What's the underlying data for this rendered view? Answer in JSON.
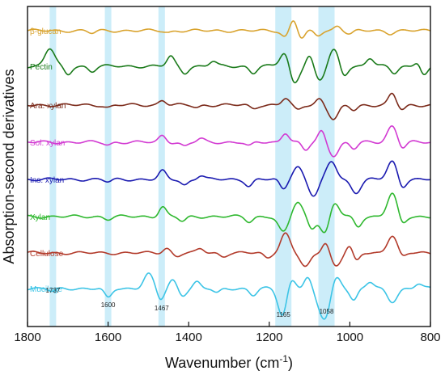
{
  "chart_data": {
    "type": "line",
    "title": "",
    "xlabel": "Wavenumber (cm",
    "xlabel_sup": "-1",
    "xlabel_end": ")",
    "ylabel": "Absorption-second derivatives",
    "xlim": [
      1800,
      800
    ],
    "x_reversed": true,
    "y_ticks_shown": false,
    "x_ticks": [
      1800,
      1600,
      1400,
      1200,
      1000,
      800
    ],
    "x_tick_labels": [
      "1800",
      "1600",
      "1400",
      "1200",
      "1000",
      "800"
    ],
    "highlight_color": "#bfe9f7",
    "highlight_bands": [
      {
        "center": 1737,
        "label": "1737"
      },
      {
        "center": 1600,
        "label": "1600"
      },
      {
        "center": 1467,
        "label": "1467"
      },
      {
        "center": 1165,
        "label": "1165"
      },
      {
        "center": 1058,
        "label": "1058"
      }
    ],
    "series": [
      {
        "name": "β-glucan",
        "color": "#d9a32e",
        "peaks": [
          [
            1160,
            -8
          ],
          [
            1140,
            14
          ],
          [
            1120,
            -10
          ],
          [
            1080,
            -6
          ],
          [
            1030,
            6
          ],
          [
            1000,
            -4
          ],
          [
            900,
            -3
          ],
          [
            1640,
            -3
          ],
          [
            1450,
            -2
          ]
        ]
      },
      {
        "name": "Pectin",
        "color": "#1a7a1a",
        "peaks": [
          [
            1745,
            22
          ],
          [
            1700,
            -10
          ],
          [
            1640,
            -6
          ],
          [
            1445,
            12
          ],
          [
            1410,
            -8
          ],
          [
            1340,
            6
          ],
          [
            1240,
            -8
          ],
          [
            1160,
            20
          ],
          [
            1140,
            -24
          ],
          [
            1100,
            14
          ],
          [
            1075,
            -18
          ],
          [
            1040,
            20
          ],
          [
            1015,
            -12
          ],
          [
            950,
            10
          ],
          [
            890,
            -8
          ],
          [
            830,
            14
          ],
          [
            820,
            -16
          ]
        ]
      },
      {
        "name": "Ara. xylan",
        "color": "#7b2a1a",
        "peaks": [
          [
            1600,
            -3
          ],
          [
            1465,
            6
          ],
          [
            1380,
            -3
          ],
          [
            1240,
            -4
          ],
          [
            1160,
            8
          ],
          [
            1130,
            -6
          ],
          [
            1075,
            8
          ],
          [
            1040,
            -18
          ],
          [
            990,
            -6
          ],
          [
            895,
            14
          ],
          [
            870,
            -6
          ]
        ]
      },
      {
        "name": "Sol. xylan",
        "color": "#d23ad2",
        "peaks": [
          [
            1600,
            -3
          ],
          [
            1465,
            8
          ],
          [
            1410,
            -5
          ],
          [
            1370,
            4
          ],
          [
            1250,
            -5
          ],
          [
            1160,
            12
          ],
          [
            1110,
            -10
          ],
          [
            1070,
            14
          ],
          [
            1040,
            -16
          ],
          [
            990,
            -8
          ],
          [
            895,
            20
          ],
          [
            870,
            -8
          ]
        ]
      },
      {
        "name": "Ins. xylan",
        "color": "#1a1ab0",
        "peaks": [
          [
            1600,
            -3
          ],
          [
            1465,
            10
          ],
          [
            1410,
            -7
          ],
          [
            1370,
            5
          ],
          [
            1250,
            -8
          ],
          [
            1165,
            -12
          ],
          [
            1130,
            16
          ],
          [
            1090,
            -20
          ],
          [
            1045,
            22
          ],
          [
            985,
            -16
          ],
          [
            895,
            22
          ],
          [
            870,
            -10
          ]
        ]
      },
      {
        "name": "Xylan",
        "color": "#2fb82f",
        "peaks": [
          [
            1600,
            -3
          ],
          [
            1465,
            12
          ],
          [
            1415,
            -6
          ],
          [
            1250,
            -6
          ],
          [
            1165,
            -20
          ],
          [
            1130,
            18
          ],
          [
            1095,
            -14
          ],
          [
            1060,
            -24
          ],
          [
            1040,
            20
          ],
          [
            980,
            -12
          ],
          [
            895,
            28
          ],
          [
            870,
            -10
          ]
        ]
      },
      {
        "name": "Cellulose",
        "color": "#b23a2a",
        "peaks": [
          [
            1455,
            6
          ],
          [
            1430,
            -4
          ],
          [
            1370,
            5
          ],
          [
            1315,
            -4
          ],
          [
            1205,
            -6
          ],
          [
            1160,
            24
          ],
          [
            1110,
            -18
          ],
          [
            1060,
            14
          ],
          [
            1035,
            -16
          ],
          [
            1000,
            10
          ],
          [
            985,
            -12
          ],
          [
            895,
            22
          ],
          [
            870,
            -6
          ]
        ]
      },
      {
        "name": "Mucilage",
        "color": "#3cc4e6",
        "peaks": [
          [
            1737,
            -4
          ],
          [
            1600,
            -12
          ],
          [
            1500,
            18
          ],
          [
            1470,
            -14
          ],
          [
            1440,
            10
          ],
          [
            1415,
            -8
          ],
          [
            1380,
            8
          ],
          [
            1330,
            -6
          ],
          [
            1240,
            -8
          ],
          [
            1165,
            -40
          ],
          [
            1150,
            20
          ],
          [
            1105,
            14
          ],
          [
            1075,
            -18
          ],
          [
            1058,
            -30
          ],
          [
            1035,
            16
          ],
          [
            990,
            -14
          ],
          [
            950,
            8
          ],
          [
            895,
            -16
          ],
          [
            830,
            6
          ]
        ]
      }
    ]
  }
}
